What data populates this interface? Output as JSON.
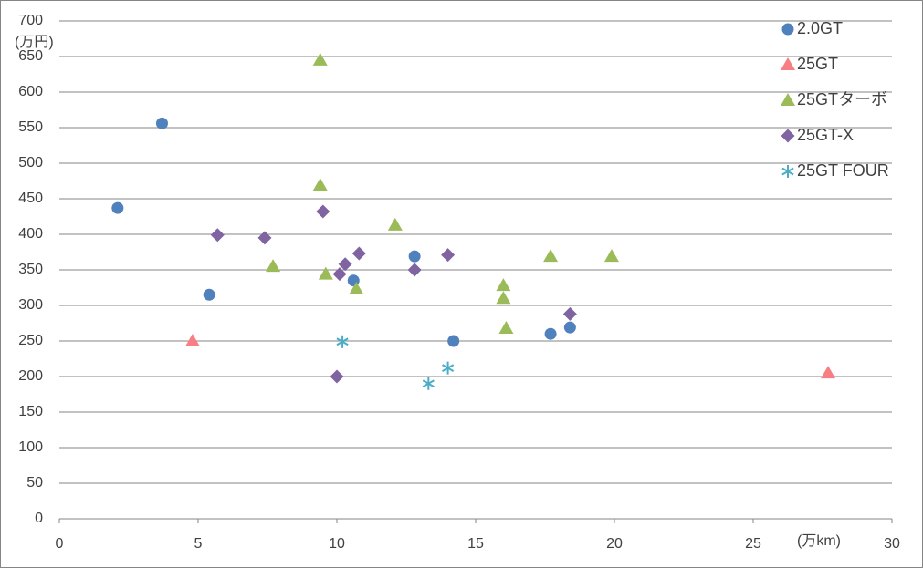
{
  "chart_data": {
    "type": "scatter",
    "x_label": "(万km)",
    "y_label": "(万円)",
    "xlim": [
      0,
      30
    ],
    "xticks": [
      0,
      5,
      10,
      15,
      20,
      25,
      30
    ],
    "ylim": [
      0,
      700
    ],
    "yticks": [
      0,
      50,
      100,
      150,
      200,
      250,
      300,
      350,
      400,
      450,
      500,
      550,
      600,
      650,
      700
    ],
    "grid": true,
    "legend": "top-right",
    "series": [
      {
        "name": "2.0GT",
        "color": "#4f81bd",
        "marker": "circle",
        "x": [
          2.1,
          3.7,
          5.4,
          10.6,
          12.8,
          14.2,
          17.7,
          18.4
        ],
        "values": [
          437,
          556,
          315,
          335,
          369,
          250,
          260,
          269
        ]
      },
      {
        "name": "25GT",
        "color": "#f77f84",
        "marker": "triangle",
        "x": [
          4.8,
          27.7
        ],
        "values": [
          250,
          205
        ]
      },
      {
        "name": "25GTターボ",
        "color": "#9bbb59",
        "marker": "triangle",
        "x": [
          9.4,
          9.4,
          12.1,
          7.7,
          9.6,
          10.7,
          16.0,
          16.0,
          16.1,
          17.7,
          19.9
        ],
        "values": [
          645,
          469,
          413,
          355,
          344,
          323,
          328,
          310,
          268,
          369,
          369
        ]
      },
      {
        "name": "25GT-X",
        "color": "#8064a2",
        "marker": "diamond",
        "x": [
          5.7,
          7.4,
          9.5,
          10.1,
          10.3,
          10.8,
          12.8,
          14.0,
          18.4,
          10.0
        ],
        "values": [
          399,
          395,
          432,
          344,
          358,
          373,
          350,
          371,
          288,
          200
        ]
      },
      {
        "name": "25GT FOUR",
        "color": "#4bacc6",
        "marker": "asterisk",
        "x": [
          10.2,
          13.3,
          14.0
        ],
        "values": [
          249,
          190,
          212
        ]
      }
    ]
  }
}
